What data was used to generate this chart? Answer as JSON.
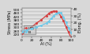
{
  "title": "",
  "xlabel": "Al (%)",
  "ylabel_left": "Stress (MPa)",
  "ylabel_right": "Elong. (%)",
  "xlim": [
    0,
    100
  ],
  "ylim_left": [
    200,
    520
  ],
  "ylim_right": [
    0,
    42
  ],
  "xticks": [
    0,
    20,
    40,
    60,
    80,
    100
  ],
  "yticks_left": [
    220,
    260,
    300,
    340,
    380,
    420,
    460,
    500
  ],
  "yticks_right": [
    0,
    10,
    20,
    30,
    40
  ],
  "red_line": {
    "x": [
      0,
      10,
      20,
      30,
      40,
      50,
      55,
      60,
      65,
      70,
      75,
      80,
      85,
      90,
      95,
      100
    ],
    "y": [
      230,
      265,
      305,
      345,
      385,
      430,
      455,
      475,
      480,
      478,
      460,
      420,
      370,
      305,
      245,
      185
    ],
    "color": "#d44040",
    "label": "UTS",
    "linewidth": 0.9,
    "marker": "o",
    "markersize": 1.2
  },
  "blue_line": {
    "x": [
      0,
      10,
      20,
      30,
      40,
      50,
      55,
      60,
      65,
      70,
      75,
      80,
      85,
      90,
      95,
      100
    ],
    "y": [
      7,
      9,
      11,
      13,
      16,
      19,
      22,
      26,
      30,
      33,
      35,
      34,
      28,
      20,
      12,
      5
    ],
    "color": "#70c8e8",
    "label": "El",
    "linewidth": 0.9,
    "marker": "o",
    "markersize": 1.2
  },
  "legend_fontsize": 3.0,
  "tick_fontsize": 3.2,
  "label_fontsize": 3.5,
  "bg_color": "#d8d8d8",
  "plot_bg_color": "#d0d0d0",
  "grid_color": "#ffffff",
  "grid_linewidth": 0.5
}
